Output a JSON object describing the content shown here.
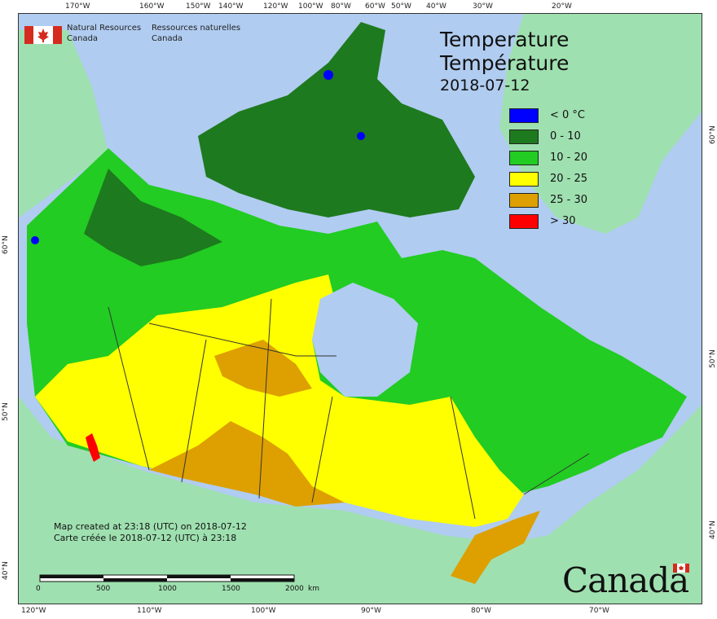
{
  "map": {
    "agency_en": "Natural Resources\nCanada",
    "agency_fr": "Ressources naturelles\nCanada",
    "title_en": "Temperature",
    "title_fr": "Température",
    "date": "2018-07-12",
    "legend": [
      {
        "label": "< 0 °C",
        "color": "#0000ff"
      },
      {
        "label": "0 - 10",
        "color": "#1e7a1e"
      },
      {
        "label": "10 - 20",
        "color": "#22cc22"
      },
      {
        "label": "20 - 25",
        "color": "#ffff00"
      },
      {
        "label": "25 - 30",
        "color": "#dda000"
      },
      {
        "label": "> 30",
        "color": "#ff0000"
      }
    ],
    "credit_en": "Map created at 23:18 (UTC) on 2018-07-12",
    "credit_fr": "Carte créée le 2018-07-12 (UTC) à 23:18",
    "scale": {
      "labels": [
        "0",
        "500",
        "1000",
        "1500",
        "2000"
      ],
      "unit": "km"
    },
    "wordmark": "Canada",
    "top_ticks": [
      "170°W",
      "160°W",
      "150°W",
      "140°W",
      "120°W",
      "100°W",
      "80°W",
      "60°W",
      "50°W",
      "40°W",
      "30°W",
      "20°W"
    ],
    "bottom_ticks": [
      "120°W",
      "110°W",
      "100°W",
      "90°W",
      "80°W",
      "70°W"
    ],
    "left_ticks": [
      "60°N",
      "50°N",
      "40°N"
    ],
    "right_ticks": [
      "60°N",
      "50°N",
      "40°N"
    ],
    "colors": {
      "water": "#b0ccf0",
      "foreign_land": "#9fe0b0",
      "border": "#333333"
    }
  }
}
